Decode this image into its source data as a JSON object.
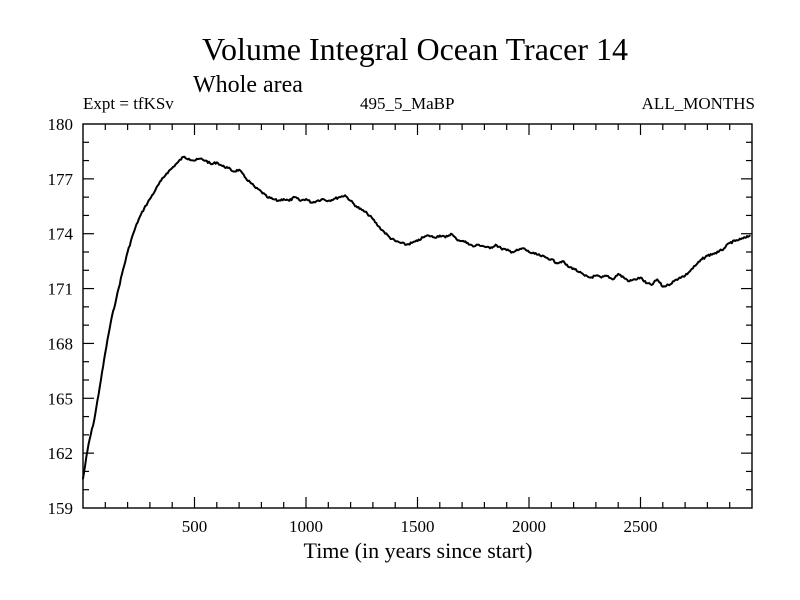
{
  "chart_data": {
    "type": "line",
    "title": "Volume Integral Ocean Tracer 14",
    "subtitle": "Whole area",
    "expt_label": "Expt = tfKSv",
    "run_label": "495_5_MaBP",
    "months_label": "ALL_MONTHS",
    "xlabel": "Time (in years since start)",
    "ylabel": "",
    "xlim": [
      0,
      3000
    ],
    "ylim": [
      159,
      180
    ],
    "xticks": [
      500,
      1000,
      1500,
      2000,
      2500
    ],
    "yticks": [
      159,
      162,
      165,
      168,
      171,
      174,
      177,
      180
    ],
    "grid": false,
    "line_color": "#000000",
    "series": [
      {
        "name": "Volume Integral Ocean Tracer 14",
        "x": [
          0,
          25,
          50,
          75,
          100,
          125,
          150,
          175,
          200,
          225,
          250,
          275,
          300,
          325,
          350,
          375,
          400,
          425,
          450,
          475,
          500,
          525,
          550,
          575,
          600,
          625,
          650,
          675,
          700,
          725,
          750,
          775,
          800,
          825,
          850,
          875,
          900,
          925,
          950,
          975,
          1000,
          1025,
          1050,
          1075,
          1100,
          1125,
          1150,
          1175,
          1200,
          1225,
          1250,
          1275,
          1300,
          1325,
          1350,
          1375,
          1400,
          1425,
          1450,
          1475,
          1500,
          1525,
          1550,
          1575,
          1600,
          1625,
          1650,
          1675,
          1700,
          1725,
          1750,
          1775,
          1800,
          1825,
          1850,
          1875,
          1900,
          1925,
          1950,
          1975,
          2000,
          2025,
          2050,
          2075,
          2100,
          2125,
          2150,
          2175,
          2200,
          2225,
          2250,
          2275,
          2300,
          2325,
          2350,
          2375,
          2400,
          2425,
          2450,
          2475,
          2500,
          2525,
          2550,
          2575,
          2600,
          2625,
          2650,
          2675,
          2700,
          2725,
          2750,
          2775,
          2800,
          2825,
          2850,
          2875,
          2900,
          2925,
          2950,
          2975,
          2990
        ],
        "values": [
          160.6,
          162.5,
          163.8,
          165.6,
          167.5,
          169.2,
          170.5,
          171.8,
          173.0,
          174.0,
          174.8,
          175.4,
          175.9,
          176.4,
          176.9,
          177.3,
          177.6,
          177.9,
          178.2,
          178.1,
          178.0,
          178.1,
          178.0,
          177.8,
          177.9,
          177.7,
          177.6,
          177.4,
          177.5,
          177.1,
          176.8,
          176.5,
          176.3,
          176.0,
          175.9,
          175.8,
          175.9,
          175.8,
          176.0,
          175.8,
          175.9,
          175.7,
          175.8,
          175.9,
          175.8,
          175.9,
          176.0,
          176.1,
          175.8,
          175.5,
          175.3,
          175.1,
          174.8,
          174.4,
          174.1,
          173.8,
          173.6,
          173.5,
          173.4,
          173.5,
          173.6,
          173.8,
          173.9,
          173.8,
          173.9,
          173.8,
          174.0,
          173.7,
          173.6,
          173.5,
          173.3,
          173.4,
          173.3,
          173.2,
          173.4,
          173.2,
          173.1,
          173.0,
          173.1,
          173.2,
          173.0,
          172.9,
          172.8,
          172.7,
          172.6,
          172.4,
          172.5,
          172.2,
          172.1,
          171.9,
          171.7,
          171.6,
          171.7,
          171.6,
          171.7,
          171.5,
          171.8,
          171.6,
          171.4,
          171.5,
          171.6,
          171.3,
          171.2,
          171.5,
          171.1,
          171.2,
          171.4,
          171.6,
          171.7,
          172.0,
          172.3,
          172.6,
          172.8,
          172.9,
          173.0,
          173.2,
          173.5,
          173.6,
          173.7,
          173.8,
          173.9
        ]
      }
    ]
  }
}
